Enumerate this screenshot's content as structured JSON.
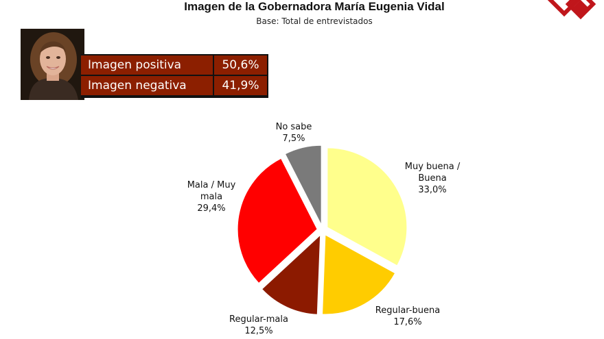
{
  "title": "Imagen de la Gobernadora María Eugenia Vidal",
  "subtitle": "Base: Total de entrevistados",
  "summary": {
    "rows": [
      {
        "label": "Imagen positiva",
        "value": "50,6%"
      },
      {
        "label": "Imagen negativa",
        "value": "41,9%"
      }
    ],
    "color": "#8c1f00"
  },
  "chart_data": {
    "type": "pie",
    "slices": [
      {
        "label": "Muy buena / Buena",
        "value": 33.0,
        "display": "33,0%",
        "color": "#ffff8c"
      },
      {
        "label": "Regular-buena",
        "value": 17.6,
        "display": "17,6%",
        "color": "#ffcc00"
      },
      {
        "label": "Regular-mala",
        "value": 12.5,
        "display": "12,5%",
        "color": "#8c1a00"
      },
      {
        "label": "Mala / Muy mala",
        "value": 29.4,
        "display": "29,4%",
        "color": "#ff0000"
      },
      {
        "label": "No sabe",
        "value": 7.5,
        "display": "7,5%",
        "color": "#7a7a7a"
      }
    ],
    "legend": "none"
  }
}
